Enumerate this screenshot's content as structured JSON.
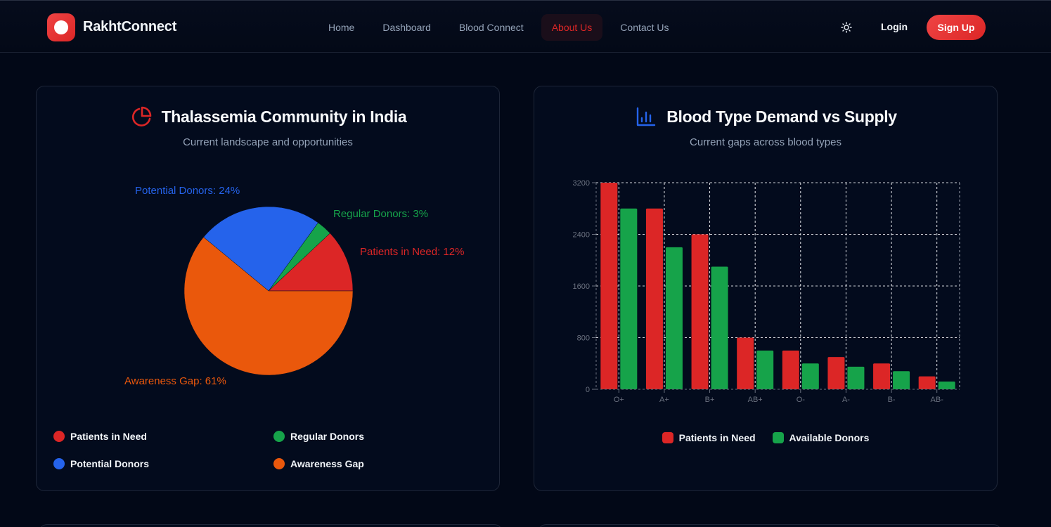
{
  "header": {
    "brand": "RakhtConnect",
    "nav": [
      {
        "label": "Home",
        "active": false
      },
      {
        "label": "Dashboard",
        "active": false
      },
      {
        "label": "Blood Connect",
        "active": false
      },
      {
        "label": "About Us",
        "active": true
      },
      {
        "label": "Contact Us",
        "active": false
      }
    ],
    "theme_icon": "sun-icon",
    "login_label": "Login",
    "signup_label": "Sign Up"
  },
  "colors": {
    "accent": "#dc2626",
    "red": "#dc2626",
    "green": "#16a34a",
    "blue": "#2563eb",
    "orange": "#ea580c"
  },
  "cards": {
    "left": {
      "icon": "pie-chart-icon",
      "title": "Thalassemia Community in India",
      "subtitle": "Current landscape and opportunities"
    },
    "right": {
      "icon": "bar-chart-icon",
      "title": "Blood Type Demand vs Supply",
      "subtitle": "Current gaps across blood types"
    }
  },
  "chart_data": [
    {
      "type": "pie",
      "title": "Thalassemia Community in India",
      "slices": [
        {
          "label": "Patients in Need",
          "value": 12,
          "color": "#dc2626",
          "data_label": "Patients in Need: 12%"
        },
        {
          "label": "Regular Donors",
          "value": 3,
          "color": "#16a34a",
          "data_label": "Regular Donors: 3%"
        },
        {
          "label": "Potential Donors",
          "value": 24,
          "color": "#2563eb",
          "data_label": "Potential Donors: 24%"
        },
        {
          "label": "Awareness Gap",
          "value": 61,
          "color": "#ea580c",
          "data_label": "Awareness Gap: 61%"
        }
      ],
      "legend": [
        "Patients in Need",
        "Regular Donors",
        "Potential Donors",
        "Awareness Gap"
      ],
      "legend_placement": "bottom"
    },
    {
      "type": "bar",
      "title": "Blood Type Demand vs Supply",
      "categories": [
        "O+",
        "A+",
        "B+",
        "AB+",
        "O-",
        "A-",
        "B-",
        "AB-"
      ],
      "series": [
        {
          "name": "Patients in Need",
          "color": "#dc2626",
          "values": [
            3200,
            2800,
            2400,
            800,
            600,
            500,
            400,
            200
          ]
        },
        {
          "name": "Available Donors",
          "color": "#16a34a",
          "values": [
            2800,
            2200,
            1900,
            600,
            400,
            350,
            280,
            120
          ]
        }
      ],
      "yticks": [
        0,
        800,
        1600,
        2400,
        3200
      ],
      "ylim": [
        0,
        3200
      ],
      "grid": true,
      "legend_placement": "bottom"
    }
  ]
}
